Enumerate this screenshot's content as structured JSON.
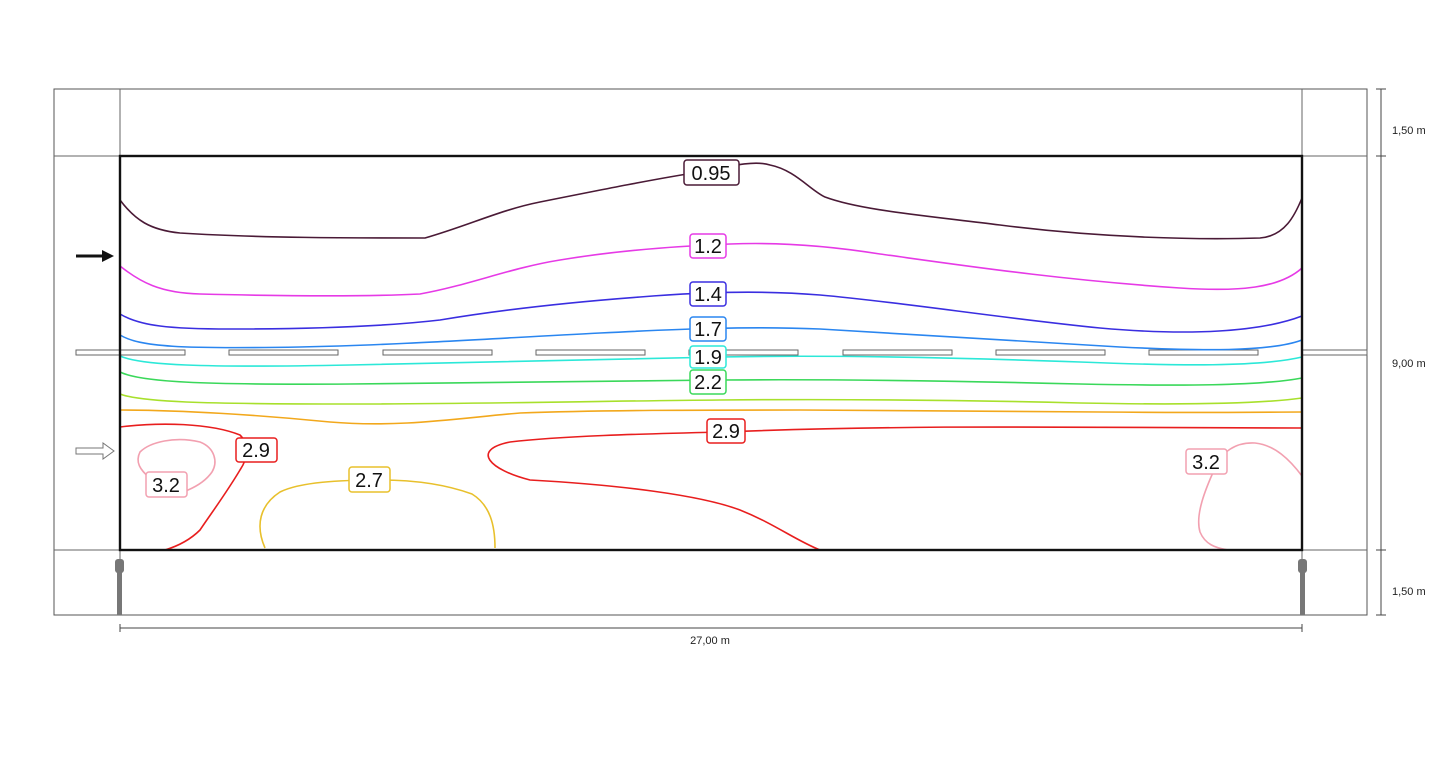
{
  "dimensions": {
    "width_label": "27,00 m",
    "top_margin_label": "1,50 m",
    "middle_label": "9,00 m",
    "bottom_margin_label": "1,50 m"
  },
  "contours": [
    {
      "value": "0.95",
      "color": "#4a1a36"
    },
    {
      "value": "1.2",
      "color": "#e63ae6"
    },
    {
      "value": "1.4",
      "color": "#3a2ee0"
    },
    {
      "value": "1.7",
      "color": "#2a86f0"
    },
    {
      "value": "1.9",
      "color": "#2ce8d8"
    },
    {
      "value": "2.2",
      "color": "#3ad85a"
    },
    {
      "value": "",
      "color": "#a8e02c"
    },
    {
      "value": "",
      "color": "#f2a81c"
    },
    {
      "value": "2.9",
      "color": "#e81e1e"
    },
    {
      "value": "2.7",
      "color": "#e8c02c"
    },
    {
      "value": "3.2",
      "color": "#f2a0b0"
    }
  ],
  "markers": {
    "solid_arrow": "arrow-right-solid",
    "hollow_arrow": "arrow-right-hollow"
  },
  "colors": {
    "outline": "#111111",
    "frame": "#555555",
    "luminaire": "#777777"
  }
}
